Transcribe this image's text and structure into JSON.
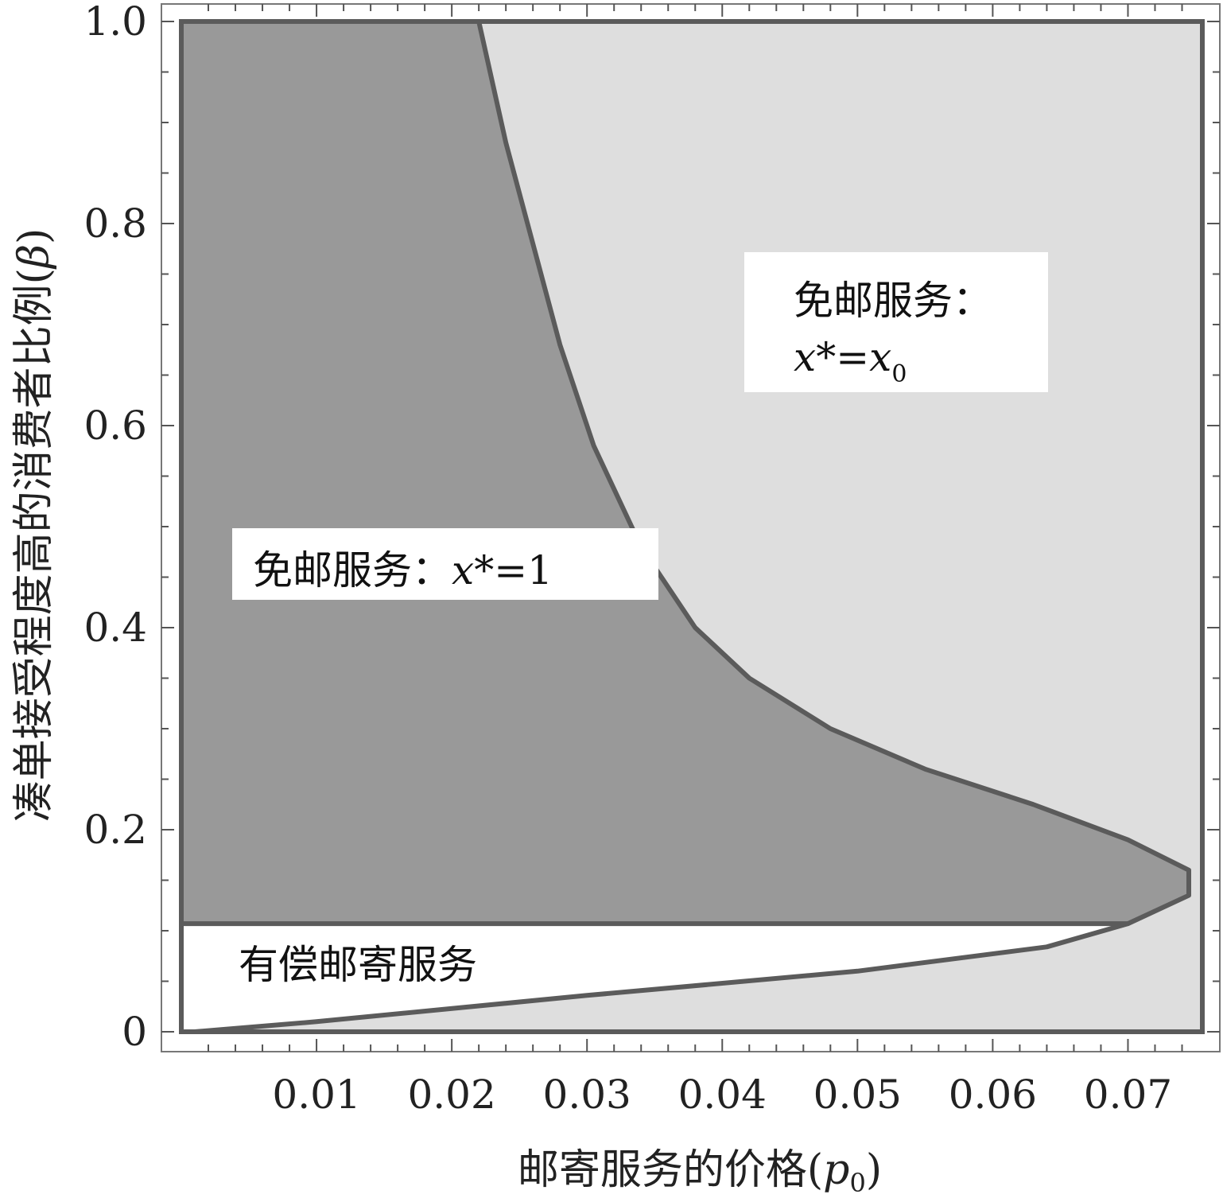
{
  "chart_data": {
    "type": "area",
    "xlabel_main": "邮寄服务的价格(",
    "xlabel_var": "p",
    "xlabel_sub": "0",
    "xlabel_close": ")",
    "ylabel_main": "凑单接受程度高的消费者比例(",
    "ylabel_var": "β",
    "ylabel_close": ")",
    "xlim": [
      0.0,
      0.0755
    ],
    "ylim": [
      0.0,
      1.0
    ],
    "x_ticks": [
      {
        "value": 0.01,
        "label": "0.01"
      },
      {
        "value": 0.02,
        "label": "0.02"
      },
      {
        "value": 0.03,
        "label": "0.03"
      },
      {
        "value": 0.04,
        "label": "0.04"
      },
      {
        "value": 0.05,
        "label": "0.05"
      },
      {
        "value": 0.06,
        "label": "0.06"
      },
      {
        "value": 0.07,
        "label": "0.07"
      }
    ],
    "y_ticks": [
      {
        "value": 0.0,
        "label": "0"
      },
      {
        "value": 0.2,
        "label": "0.2"
      },
      {
        "value": 0.4,
        "label": "0.4"
      },
      {
        "value": 0.6,
        "label": "0.6"
      },
      {
        "value": 0.8,
        "label": "0.8"
      },
      {
        "value": 1.0,
        "label": "1.0"
      }
    ],
    "threshold_beta": 0.107,
    "boundary_curve": [
      {
        "x": 0.001,
        "y": 0.0
      },
      {
        "x": 0.01,
        "y": 0.01
      },
      {
        "x": 0.03,
        "y": 0.036
      },
      {
        "x": 0.05,
        "y": 0.06
      },
      {
        "x": 0.064,
        "y": 0.084
      },
      {
        "x": 0.07,
        "y": 0.107
      },
      {
        "x": 0.0745,
        "y": 0.135
      },
      {
        "x": 0.0745,
        "y": 0.16
      },
      {
        "x": 0.07,
        "y": 0.19
      },
      {
        "x": 0.063,
        "y": 0.225
      },
      {
        "x": 0.055,
        "y": 0.26
      },
      {
        "x": 0.048,
        "y": 0.3
      },
      {
        "x": 0.042,
        "y": 0.35
      },
      {
        "x": 0.038,
        "y": 0.4
      },
      {
        "x": 0.034,
        "y": 0.48
      },
      {
        "x": 0.0305,
        "y": 0.58
      },
      {
        "x": 0.028,
        "y": 0.68
      },
      {
        "x": 0.026,
        "y": 0.78
      },
      {
        "x": 0.024,
        "y": 0.88
      },
      {
        "x": 0.022,
        "y": 1.0
      }
    ],
    "regions": [
      {
        "name": "free-shipping-x-star-1",
        "color": "#999999"
      },
      {
        "name": "free-shipping-x-star-x0",
        "color": "#dedede"
      },
      {
        "name": "paid-shipping",
        "color": "#ffffff"
      }
    ],
    "line_color": "#5b5b5b",
    "annotations": {
      "free_x1": {
        "text": "免邮服务：",
        "math": "x",
        "rest": "*=1"
      },
      "free_x0": {
        "line1": "免邮服务：",
        "math": "x",
        "mid": "*=",
        "math2": "x",
        "sub": "0"
      },
      "paid": {
        "text": "有偿邮寄服务"
      }
    }
  }
}
